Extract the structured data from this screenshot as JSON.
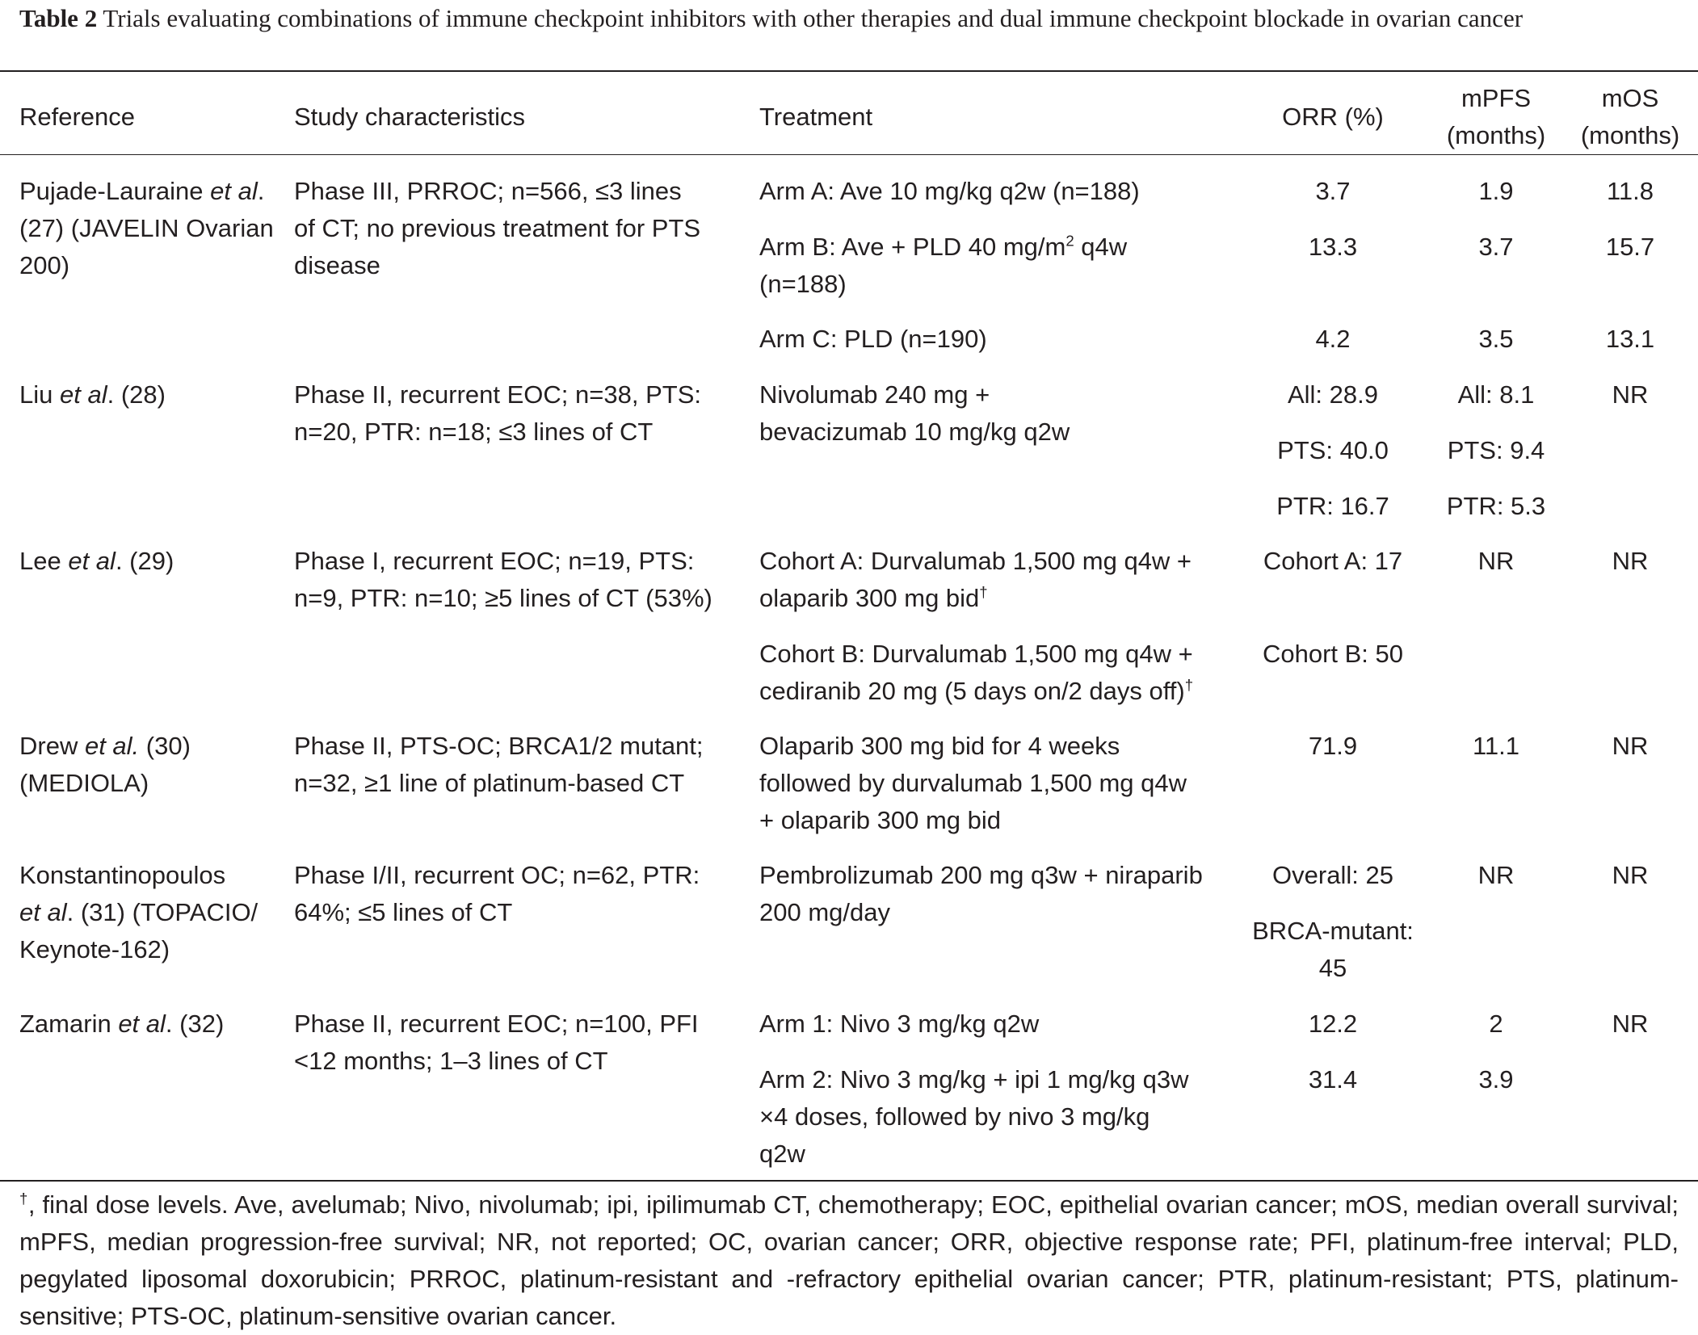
{
  "caption": {
    "label": "Table 2",
    "text": " Trials evaluating combinations of immune checkpoint inhibitors with other therapies and dual immune checkpoint blockade in ovarian cancer"
  },
  "headers": {
    "reference": "Reference",
    "study": "Study characteristics",
    "treatment": "Treatment",
    "orr": "ORR (%)",
    "mpfs_1": "mPFS",
    "mpfs_2": "(months)",
    "mos_1": "mOS",
    "mos_2": "(months)"
  },
  "rows": {
    "r1": {
      "ref_author": "Pujade-Lauraine",
      "ref_etal": "et al",
      "ref_rest": ".",
      "ref_line2": "(27) (JAVELIN Ovarian",
      "ref_line3": "200)",
      "study_1": "Phase III, PRROC; n=566, ≤3 lines",
      "study_2": "of CT; no previous treatment for PTS",
      "study_3": "disease",
      "armA": "Arm A: Ave 10 mg/kg q2w (n=188)",
      "armA_orr": "3.7",
      "armA_mpfs": "1.9",
      "armA_mos": "11.8",
      "armB_1a": "Arm B: Ave + PLD 40 mg/m",
      "armB_1sup": "2",
      "armB_1b": " q4w",
      "armB_2": "(n=188)",
      "armB_orr": "13.3",
      "armB_mpfs": "3.7",
      "armB_mos": "15.7",
      "armC": "Arm C: PLD (n=190)",
      "armC_orr": "4.2",
      "armC_mpfs": "3.5",
      "armC_mos": "13.1"
    },
    "r2": {
      "ref_author": "Liu ",
      "ref_etal": "et al",
      "ref_rest": ". (28)",
      "study_1": "Phase II, recurrent EOC; n=38, PTS:",
      "study_2": "n=20, PTR: n=18; ≤3 lines of CT",
      "treat_1": "Nivolumab 240 mg +",
      "treat_2": "bevacizumab 10 mg/kg q2w",
      "orr_all": "All: 28.9",
      "orr_pts": "PTS: 40.0",
      "orr_ptr": "PTR: 16.7",
      "mpfs_all": "All: 8.1",
      "mpfs_pts": "PTS: 9.4",
      "mpfs_ptr": "PTR: 5.3",
      "mos": "NR"
    },
    "r3": {
      "ref_author": "Lee ",
      "ref_etal": "et al",
      "ref_rest": ". (29)",
      "study_1": "Phase I, recurrent EOC; n=19, PTS:",
      "study_2": "n=9, PTR: n=10; ≥5 lines of CT (53%)",
      "cohA_1": "Cohort A: Durvalumab 1,500 mg q4w +",
      "cohA_2": "olaparib 300 mg bid",
      "cohA_sup": "†",
      "cohA_orr": "Cohort A: 17",
      "cohB_1": "Cohort B: Durvalumab 1,500 mg q4w +",
      "cohB_2": "cediranib 20 mg (5 days on/2 days off)",
      "cohB_sup": "†",
      "cohB_orr": "Cohort B: 50",
      "mpfs": "NR",
      "mos": "NR"
    },
    "r4": {
      "ref_author": "Drew ",
      "ref_etal": "et al.",
      "ref_rest": " (30)",
      "ref_line2": "(MEDIOLA)",
      "study_1": "Phase II, PTS-OC; BRCA1/2 mutant;",
      "study_2": "n=32, ≥1 line of platinum-based CT",
      "treat_1": "Olaparib 300 mg bid for 4 weeks",
      "treat_2": "followed by durvalumab 1,500 mg q4w",
      "treat_3": "+ olaparib 300 mg bid",
      "orr": "71.9",
      "mpfs": "11.1",
      "mos": "NR"
    },
    "r5": {
      "ref_line1": "Konstantinopoulos",
      "ref_etal": "et al",
      "ref_rest": ". (31) (TOPACIO/",
      "ref_line3": "Keynote-162)",
      "study_1": "Phase I/II, recurrent OC; n=62, PTR:",
      "study_2": "64%; ≤5 lines of CT",
      "treat_1": "Pembrolizumab 200 mg q3w + niraparib",
      "treat_2": "200 mg/day",
      "orr_overall": "Overall: 25",
      "orr_brca_1": "BRCA-mutant:",
      "orr_brca_2": "45",
      "mpfs": "NR",
      "mos": "NR"
    },
    "r6": {
      "ref_author": "Zamarin ",
      "ref_etal": "et al",
      "ref_rest": ". (32)",
      "study_1": "Phase II, recurrent EOC; n=100, PFI",
      "study_2": "<12 months; 1–3 lines of CT",
      "arm1": "Arm 1: Nivo 3 mg/kg q2w",
      "arm1_orr": "12.2",
      "arm1_mpfs": "2",
      "arm2_1": "Arm 2: Nivo 3 mg/kg + ipi 1 mg/kg q3w",
      "arm2_2": "×4 doses, followed by nivo 3 mg/kg",
      "arm2_3": "q2w",
      "arm2_orr": "31.4",
      "arm2_mpfs": "3.9",
      "mos": "NR"
    }
  },
  "footnote": {
    "dagger": "†",
    "text": ", final dose levels. Ave, avelumab; Nivo, nivolumab; ipi, ipilimumab CT, chemotherapy; EOC, epithelial ovarian cancer; mOS, median overall survival; mPFS, median progression-free survival; NR, not reported; OC, ovarian cancer; ORR, objective response rate; PFI, platinum-free interval; PLD, pegylated liposomal doxorubicin; PRROC, platinum-resistant and -refractory epithelial ovarian cancer; PTR, platinum-resistant; PTS, platinum-sensitive; PTS-OC, platinum-sensitive ovarian cancer."
  }
}
